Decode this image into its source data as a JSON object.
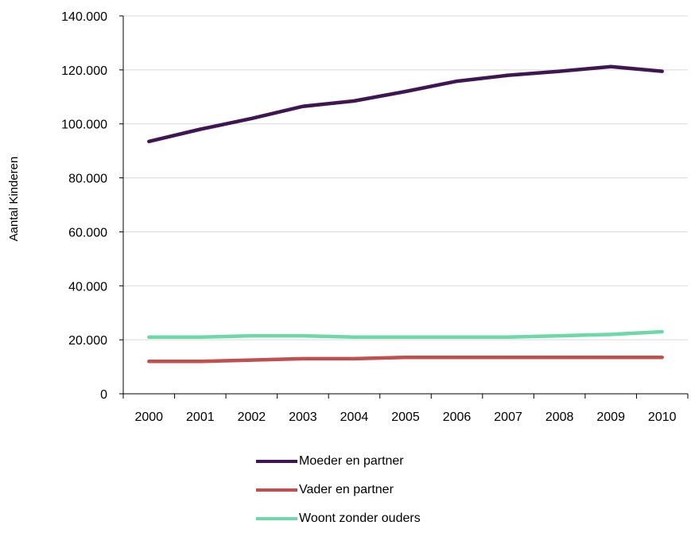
{
  "chart_data": {
    "type": "line",
    "title": "",
    "xlabel": "",
    "ylabel": "Aantal Kinderen",
    "categories": [
      "2000",
      "2001",
      "2002",
      "2003",
      "2004",
      "2005",
      "2006",
      "2007",
      "2008",
      "2009",
      "2010"
    ],
    "y_ticks": [
      "0",
      "20.000",
      "40.000",
      "60.000",
      "80.000",
      "100.000",
      "120.000",
      "140.000"
    ],
    "ylim": [
      0,
      140000
    ],
    "grid": true,
    "legend_position": "bottom",
    "series": [
      {
        "name": "Moeder en partner",
        "color": "#3f1651",
        "values": [
          93500,
          98000,
          102000,
          106500,
          108500,
          112000,
          115800,
          118000,
          119500,
          121200,
          119500
        ]
      },
      {
        "name": "Vader en partner",
        "color": "#c0504d",
        "values": [
          12000,
          12000,
          12500,
          13000,
          13000,
          13500,
          13500,
          13500,
          13500,
          13500,
          13500
        ]
      },
      {
        "name": "Woont zonder ouders",
        "color": "#6fd8a9",
        "values": [
          21000,
          21000,
          21500,
          21500,
          21000,
          21000,
          21000,
          21000,
          21500,
          22000,
          23000
        ]
      }
    ]
  }
}
